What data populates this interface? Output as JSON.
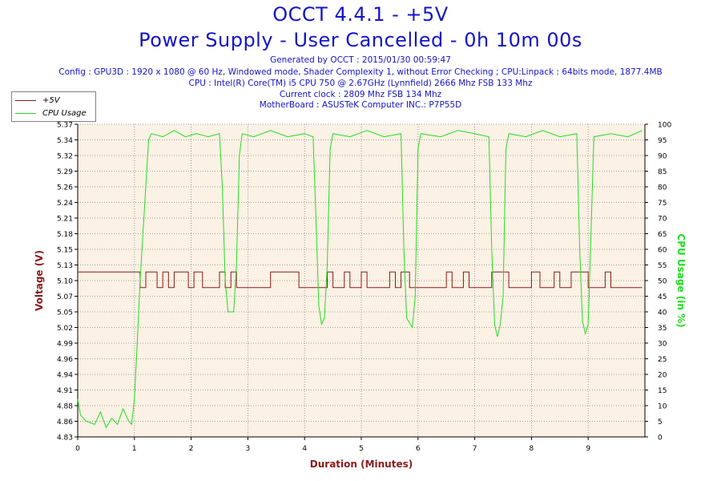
{
  "header": {
    "title": "OCCT 4.4.1 - +5V",
    "subtitle": "Power Supply - User Cancelled - 0h 10m 00s",
    "generated": "Generated by OCCT : 2015/01/30 00:59:47",
    "config": "Config : GPU3D : 1920 x 1080 @ 60 Hz, Windowed mode, Shader Complexity 1, without Error Checking ; CPU:Linpack : 64bits mode, 1877.4MB",
    "cpu": "CPU : Intel(R) Core(TM) i5 CPU 750 @ 2.67GHz (Lynnfield) 2666 Mhz FSB 133 Mhz",
    "clock": "Current clock : 2809 Mhz FSB 134 Mhz",
    "motherboard": "MotherBoard : ASUSTeK Computer INC.: P7P55D"
  },
  "colors": {
    "title": "#1414c8",
    "voltage": "#8b1a1a",
    "cpu": "#22dd22",
    "plot_bg": "#fbf1e4",
    "grid": "#8a8a8a"
  },
  "chart_data": {
    "type": "line",
    "xlabel": "Duration (Minutes)",
    "ylabel_left": "Voltage (V)",
    "ylabel_right": "CPU Usage (in %)",
    "xlim": [
      0,
      10
    ],
    "ylim_left": [
      4.83,
      5.37
    ],
    "ylim_right": [
      0,
      100
    ],
    "x_ticks": [
      "0",
      "1",
      "2",
      "3",
      "4",
      "5",
      "6",
      "7",
      "8",
      "9"
    ],
    "y_ticks_left": [
      "4.83",
      "4.86",
      "4.88",
      "4.91",
      "4.94",
      "4.96",
      "4.99",
      "5.02",
      "5.05",
      "5.07",
      "5.10",
      "5.13",
      "5.15",
      "5.18",
      "5.21",
      "5.24",
      "5.26",
      "5.29",
      "5.32",
      "5.34",
      "5.37"
    ],
    "y_ticks_right": [
      "0",
      "5",
      "10",
      "15",
      "20",
      "25",
      "30",
      "35",
      "40",
      "45",
      "50",
      "55",
      "60",
      "65",
      "70",
      "75",
      "80",
      "85",
      "90",
      "95",
      "100"
    ],
    "grid": true,
    "legend_position": "top-left",
    "series": [
      {
        "name": "+5V",
        "axis": "left",
        "base": 5.088,
        "high": 5.115,
        "points": [
          [
            0,
            5.115
          ],
          [
            1.1,
            5.115
          ],
          [
            1.1,
            5.088
          ],
          [
            1.2,
            5.088
          ],
          [
            1.2,
            5.115
          ],
          [
            1.4,
            5.115
          ],
          [
            1.4,
            5.088
          ],
          [
            1.5,
            5.088
          ],
          [
            1.5,
            5.115
          ],
          [
            1.6,
            5.115
          ],
          [
            1.6,
            5.088
          ],
          [
            1.7,
            5.088
          ],
          [
            1.7,
            5.115
          ],
          [
            1.95,
            5.115
          ],
          [
            1.95,
            5.088
          ],
          [
            2.05,
            5.088
          ],
          [
            2.05,
            5.115
          ],
          [
            2.2,
            5.115
          ],
          [
            2.2,
            5.088
          ],
          [
            2.5,
            5.088
          ],
          [
            2.5,
            5.115
          ],
          [
            2.6,
            5.115
          ],
          [
            2.6,
            5.088
          ],
          [
            2.7,
            5.088
          ],
          [
            2.7,
            5.115
          ],
          [
            2.8,
            5.115
          ],
          [
            2.8,
            5.088
          ],
          [
            3.4,
            5.088
          ],
          [
            3.4,
            5.115
          ],
          [
            3.9,
            5.115
          ],
          [
            3.9,
            5.088
          ],
          [
            4.4,
            5.088
          ],
          [
            4.4,
            5.115
          ],
          [
            4.5,
            5.115
          ],
          [
            4.5,
            5.088
          ],
          [
            4.7,
            5.088
          ],
          [
            4.7,
            5.115
          ],
          [
            4.8,
            5.115
          ],
          [
            4.8,
            5.088
          ],
          [
            5.0,
            5.088
          ],
          [
            5.0,
            5.115
          ],
          [
            5.1,
            5.115
          ],
          [
            5.1,
            5.088
          ],
          [
            5.5,
            5.088
          ],
          [
            5.5,
            5.115
          ],
          [
            5.6,
            5.115
          ],
          [
            5.6,
            5.088
          ],
          [
            5.7,
            5.088
          ],
          [
            5.7,
            5.115
          ],
          [
            5.85,
            5.115
          ],
          [
            5.85,
            5.088
          ],
          [
            6.5,
            5.088
          ],
          [
            6.5,
            5.115
          ],
          [
            6.6,
            5.115
          ],
          [
            6.6,
            5.088
          ],
          [
            6.8,
            5.088
          ],
          [
            6.8,
            5.115
          ],
          [
            6.9,
            5.115
          ],
          [
            6.9,
            5.088
          ],
          [
            7.3,
            5.088
          ],
          [
            7.3,
            5.115
          ],
          [
            7.6,
            5.115
          ],
          [
            7.6,
            5.088
          ],
          [
            8.0,
            5.088
          ],
          [
            8.0,
            5.115
          ],
          [
            8.15,
            5.115
          ],
          [
            8.15,
            5.088
          ],
          [
            8.4,
            5.088
          ],
          [
            8.4,
            5.115
          ],
          [
            8.5,
            5.115
          ],
          [
            8.5,
            5.088
          ],
          [
            8.7,
            5.088
          ],
          [
            8.7,
            5.115
          ],
          [
            9.0,
            5.115
          ],
          [
            9.0,
            5.088
          ],
          [
            9.3,
            5.088
          ],
          [
            9.3,
            5.115
          ],
          [
            9.4,
            5.115
          ],
          [
            9.4,
            5.088
          ],
          [
            9.95,
            5.088
          ]
        ]
      },
      {
        "name": "CPU Usage",
        "axis": "right",
        "points": [
          [
            0,
            12
          ],
          [
            0.05,
            7
          ],
          [
            0.15,
            5
          ],
          [
            0.3,
            4
          ],
          [
            0.4,
            8
          ],
          [
            0.5,
            3
          ],
          [
            0.6,
            6
          ],
          [
            0.7,
            4
          ],
          [
            0.8,
            9
          ],
          [
            0.9,
            5
          ],
          [
            0.95,
            4
          ],
          [
            1.0,
            12
          ],
          [
            1.05,
            30
          ],
          [
            1.1,
            50
          ],
          [
            1.15,
            65
          ],
          [
            1.2,
            80
          ],
          [
            1.25,
            95
          ],
          [
            1.3,
            97
          ],
          [
            1.5,
            96
          ],
          [
            1.7,
            98
          ],
          [
            1.9,
            96
          ],
          [
            2.1,
            97
          ],
          [
            2.3,
            96
          ],
          [
            2.5,
            97
          ],
          [
            2.55,
            80
          ],
          [
            2.6,
            50
          ],
          [
            2.65,
            40
          ],
          [
            2.75,
            40
          ],
          [
            2.8,
            55
          ],
          [
            2.85,
            90
          ],
          [
            2.9,
            97
          ],
          [
            3.1,
            96
          ],
          [
            3.4,
            98
          ],
          [
            3.7,
            96
          ],
          [
            4.0,
            97
          ],
          [
            4.15,
            96
          ],
          [
            4.2,
            70
          ],
          [
            4.25,
            42
          ],
          [
            4.3,
            36
          ],
          [
            4.35,
            38
          ],
          [
            4.4,
            55
          ],
          [
            4.45,
            92
          ],
          [
            4.5,
            97
          ],
          [
            4.8,
            96
          ],
          [
            5.1,
            98
          ],
          [
            5.4,
            96
          ],
          [
            5.7,
            97
          ],
          [
            5.75,
            60
          ],
          [
            5.8,
            38
          ],
          [
            5.9,
            35
          ],
          [
            5.95,
            45
          ],
          [
            6.0,
            92
          ],
          [
            6.05,
            97
          ],
          [
            6.4,
            96
          ],
          [
            6.7,
            98
          ],
          [
            7.0,
            97
          ],
          [
            7.25,
            96
          ],
          [
            7.3,
            60
          ],
          [
            7.35,
            36
          ],
          [
            7.4,
            32
          ],
          [
            7.45,
            36
          ],
          [
            7.5,
            45
          ],
          [
            7.55,
            92
          ],
          [
            7.6,
            97
          ],
          [
            7.9,
            96
          ],
          [
            8.2,
            98
          ],
          [
            8.5,
            96
          ],
          [
            8.8,
            97
          ],
          [
            8.85,
            60
          ],
          [
            8.9,
            37
          ],
          [
            8.95,
            33
          ],
          [
            9.0,
            36
          ],
          [
            9.05,
            65
          ],
          [
            9.1,
            96
          ],
          [
            9.4,
            97
          ],
          [
            9.7,
            96
          ],
          [
            9.95,
            98
          ]
        ]
      }
    ]
  }
}
